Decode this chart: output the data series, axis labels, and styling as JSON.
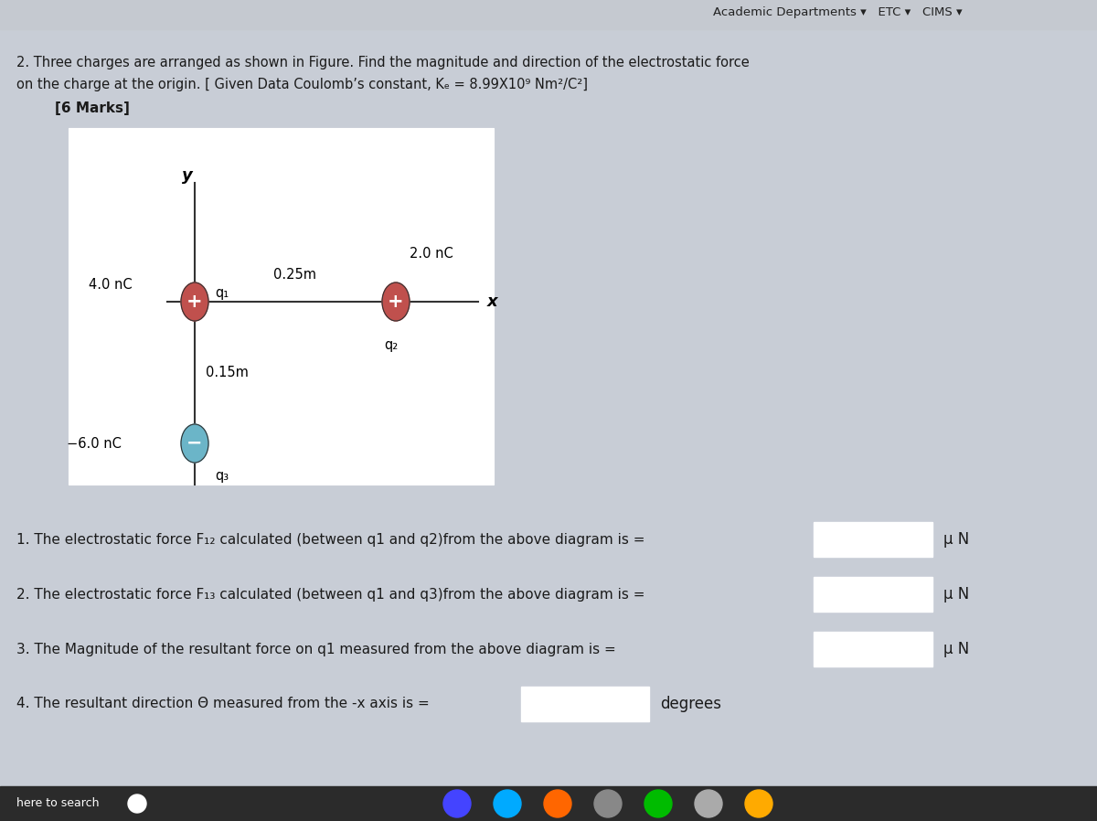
{
  "bg_color": "#c8cdd6",
  "top_bar_color": "#d0d3d8",
  "top_bar_text": "Academic Departments ▾   ETC ▾   CIMS ▾",
  "title_line1": "2. Three charges are arranged as shown in Figure. Find the magnitude and direction of the electrostatic force",
  "title_line2": "on the charge at the origin. [ Given Data Coulomb’s constant, Kₑ = 8.99X10⁹ Nm²/C²]",
  "marks": "[6 Marks]",
  "diagram_bg": "#ffffff",
  "q1_label": "q₁",
  "q2_label": "q₂",
  "q3_label": "q₃",
  "q1_charge": "4.0 nC",
  "q2_charge": "2.0 nC",
  "q3_charge": "−6.0 nC",
  "dist_horiz": "0.25m",
  "dist_vert": "0.15m",
  "q1_color": "#c0504d",
  "q2_color": "#c0504d",
  "q3_color": "#6bb5c8",
  "questions": [
    "1. The electrostatic force F₁₂ calculated (between q1 and q2)from the above diagram is =",
    "2. The electrostatic force F₁₃ calculated (between q1 and q3)from the above diagram is =",
    "3. The Magnitude of the resultant force on q1 measured from the above diagram is =",
    "4. The resultant direction Θ measured from the -x axis is ="
  ],
  "units": [
    "μ N",
    "μ N",
    "μ N",
    "degrees"
  ],
  "text_color": "#1a1a1a",
  "taskbar_color": "#2b2b2b"
}
